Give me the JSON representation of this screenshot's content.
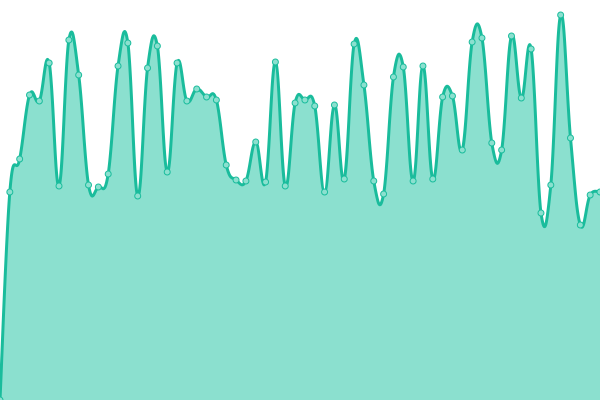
{
  "chart_data": {
    "type": "area",
    "title": "",
    "xlabel": "",
    "ylabel": "",
    "ylim": [
      0,
      400
    ],
    "grid": false,
    "legend": "none",
    "x": [
      0,
      1,
      2,
      3,
      4,
      5,
      6,
      7,
      8,
      9,
      10,
      11,
      12,
      13,
      14,
      15,
      16,
      17,
      18,
      19,
      20,
      21,
      22,
      23,
      24,
      25,
      26,
      27,
      28,
      29,
      30,
      31,
      32,
      33,
      34,
      35,
      36,
      37,
      38,
      39,
      40,
      41,
      42,
      43,
      44,
      45,
      46,
      47,
      48,
      49,
      50,
      51,
      52,
      53,
      54,
      55,
      56,
      57,
      58,
      59,
      60,
      61
    ],
    "series": [
      {
        "values": [
          0,
          208,
          241,
          305,
          299,
          337,
          214,
          360,
          325,
          215,
          213,
          226,
          334,
          357,
          204,
          332,
          354,
          228,
          337,
          299,
          311,
          303,
          300,
          235,
          220,
          219,
          258,
          218,
          338,
          214,
          297,
          300,
          294,
          208,
          295,
          221,
          356,
          315,
          219,
          206,
          323,
          333,
          219,
          334,
          221,
          303,
          304,
          250,
          358,
          362,
          257,
          250,
          364,
          302,
          351,
          187,
          215,
          385,
          262,
          175,
          205,
          208
        ],
        "line_color": "#1abc9c",
        "fill_color": "#8be0cf",
        "marker_color": "#8be0cf"
      }
    ]
  }
}
